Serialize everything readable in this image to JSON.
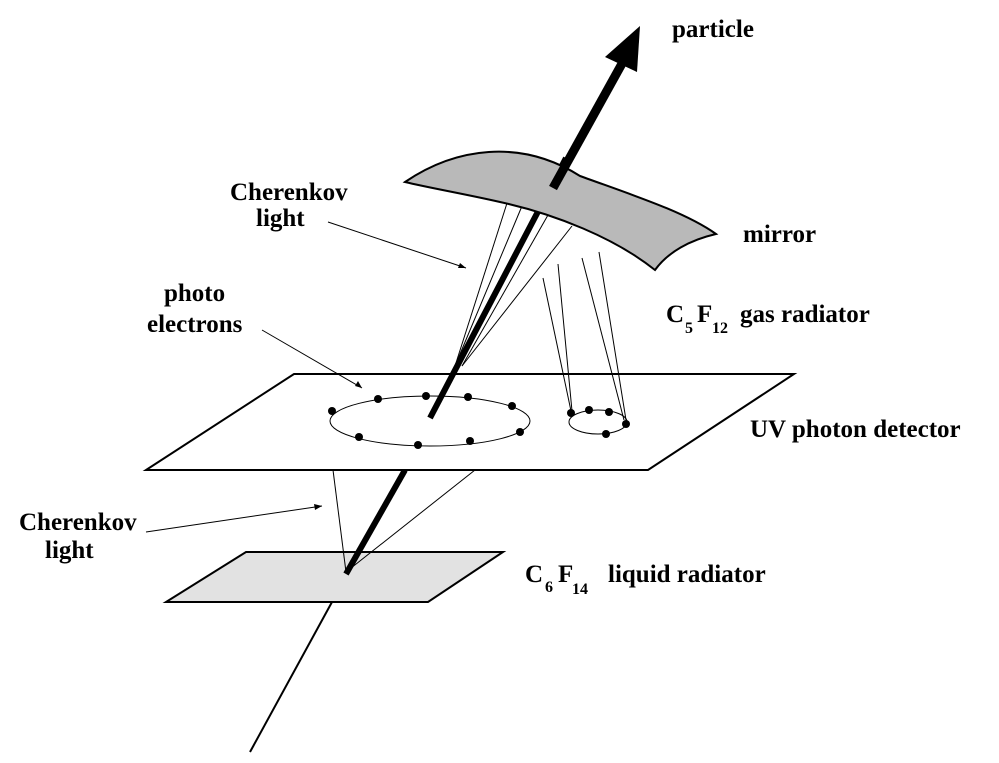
{
  "labels": {
    "particle": "particle",
    "mirror": "mirror",
    "cherenkov_top_1": "Cherenkov",
    "cherenkov_top_2": "light",
    "photo_1": "photo",
    "photo_2": "electrons",
    "gas_radiator": {
      "c": "C",
      "c_sub": "5",
      "f": "F",
      "f_sub": "12",
      "text": "gas radiator"
    },
    "uv_detector": "UV photon detector",
    "cherenkov_bottom_1": "Cherenkov",
    "cherenkov_bottom_2": "light",
    "liquid_radiator": {
      "c": "C",
      "c_sub": "6",
      "f": "F",
      "f_sub": "14",
      "text": "liquid radiator"
    }
  },
  "colors": {
    "mirror_fill": "#b9b9b9",
    "liquid_fill": "#e2e2e2",
    "ink": "#000000"
  }
}
